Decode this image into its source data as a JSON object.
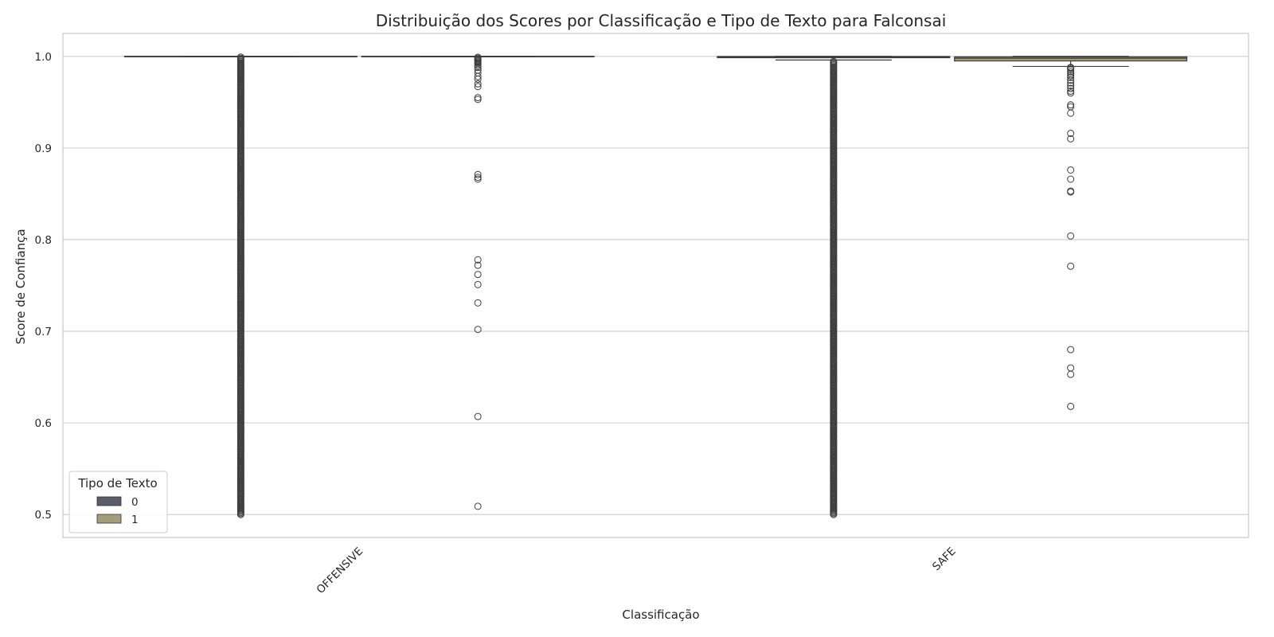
{
  "chart_data": {
    "type": "box",
    "title": "Distribuição dos Scores por Classificação e Tipo de Texto para Falconsai",
    "xlabel": "Classificação",
    "ylabel": "Score de Confiança",
    "categories": [
      "OFFENSIVE",
      "SAFE"
    ],
    "ylim": [
      0.475,
      1.025
    ],
    "yticks": [
      0.5,
      0.6,
      0.7,
      0.8,
      0.9,
      1.0
    ],
    "ytick_labels": [
      "0.5",
      "0.6",
      "0.7",
      "0.8",
      "0.9",
      "1.0"
    ],
    "grid": true,
    "legend": {
      "title": "Tipo de Texto",
      "placement": "lower-left"
    },
    "series": [
      {
        "name": "0",
        "color": "#5a5e6b",
        "boxes": [
          {
            "category": "OFFENSIVE",
            "q1": 0.9998,
            "median": 1.0,
            "q3": 1.0,
            "whisker_low": 0.9996,
            "whisker_high": 1.0,
            "outlier_range": [
              0.5,
              1.0
            ],
            "outliers_dense": true
          },
          {
            "category": "SAFE",
            "q1": 0.9985,
            "median": 0.9995,
            "q3": 0.9999,
            "whisker_low": 0.996,
            "whisker_high": 1.0,
            "outlier_range": [
              0.5,
              0.995
            ],
            "outliers_dense": true
          }
        ]
      },
      {
        "name": "1",
        "color": "#a39d78",
        "boxes": [
          {
            "category": "OFFENSIVE",
            "q1": 0.9998,
            "median": 1.0,
            "q3": 1.0,
            "whisker_low": 0.9996,
            "whisker_high": 1.0,
            "outliers": [
              0.999,
              0.998,
              0.997,
              0.996,
              0.995,
              0.994,
              0.993,
              0.992,
              0.99,
              0.988,
              0.985,
              0.982,
              0.978,
              0.975,
              0.97,
              0.967,
              0.955,
              0.953,
              0.871,
              0.868,
              0.866,
              0.778,
              0.772,
              0.762,
              0.751,
              0.731,
              0.702,
              0.607,
              0.509
            ]
          },
          {
            "category": "SAFE",
            "q1": 0.995,
            "median": 0.998,
            "q3": 0.9995,
            "whisker_low": 0.989,
            "whisker_high": 1.0,
            "outliers": [
              0.988,
              0.987,
              0.985,
              0.983,
              0.981,
              0.979,
              0.977,
              0.974,
              0.971,
              0.968,
              0.965,
              0.962,
              0.96,
              0.947,
              0.945,
              0.938,
              0.916,
              0.91,
              0.876,
              0.866,
              0.853,
              0.852,
              0.804,
              0.771,
              0.68,
              0.66,
              0.653,
              0.618
            ]
          }
        ]
      }
    ]
  }
}
